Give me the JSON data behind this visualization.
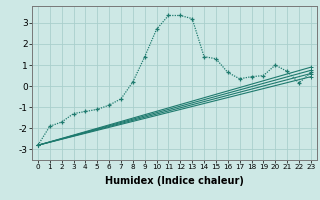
{
  "xlabel": "Humidex (Indice chaleur)",
  "background_color": "#cde8e5",
  "grid_color": "#aacfcc",
  "line_color": "#1e7a6e",
  "xlim": [
    -0.5,
    23.5
  ],
  "ylim": [
    -3.5,
    3.8
  ],
  "x_ticks": [
    0,
    1,
    2,
    3,
    4,
    5,
    6,
    7,
    8,
    9,
    10,
    11,
    12,
    13,
    14,
    15,
    16,
    17,
    18,
    19,
    20,
    21,
    22,
    23
  ],
  "y_ticks": [
    -3,
    -2,
    -1,
    0,
    1,
    2,
    3
  ],
  "dotted_series": {
    "x": [
      0,
      1,
      2,
      3,
      4,
      5,
      6,
      7,
      8,
      9,
      10,
      11,
      12,
      13,
      14,
      15,
      16,
      17,
      18,
      19,
      20,
      21,
      22,
      23
    ],
    "y": [
      -2.8,
      -1.9,
      -1.7,
      -1.3,
      -1.2,
      -1.1,
      -0.9,
      -0.6,
      0.2,
      1.4,
      2.7,
      3.35,
      3.35,
      3.2,
      1.4,
      1.3,
      0.65,
      0.35,
      0.45,
      0.5,
      1.0,
      0.7,
      0.15,
      0.65
    ]
  },
  "solid_series": [
    {
      "x": [
        0,
        23
      ],
      "y": [
        -2.8,
        0.9
      ]
    },
    {
      "x": [
        0,
        23
      ],
      "y": [
        -2.8,
        0.75
      ]
    },
    {
      "x": [
        0,
        23
      ],
      "y": [
        -2.8,
        0.6
      ]
    },
    {
      "x": [
        0,
        23
      ],
      "y": [
        -2.8,
        0.45
      ]
    }
  ]
}
